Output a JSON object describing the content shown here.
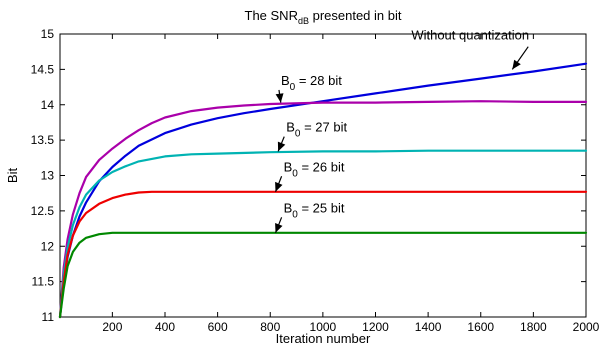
{
  "chart_data": {
    "type": "line",
    "title_main": "The SNR",
    "title_sub": "dB",
    "title_rest": " presented in bit",
    "xlabel": "Iteration number",
    "ylabel": "Bit",
    "xlim": [
      1,
      2000
    ],
    "ylim": [
      11,
      15
    ],
    "grid": false,
    "x_ticks": [
      200,
      400,
      600,
      800,
      1000,
      1200,
      1400,
      1600,
      1800,
      2000
    ],
    "y_ticks": [
      11,
      11.5,
      12,
      12.5,
      13,
      13.5,
      14,
      14.5,
      15
    ],
    "x_tick_labels": [
      "200",
      "400",
      "600",
      "800",
      "1000",
      "1200",
      "1400",
      "1600",
      "1800",
      "2000"
    ],
    "y_tick_labels": [
      "11",
      "11.5",
      "12",
      "12.5",
      "13",
      "13.5",
      "14",
      "14.5",
      "15"
    ],
    "series": [
      {
        "name": "Without quantization",
        "color": "#0000dd",
        "x": [
          1,
          15,
          30,
          50,
          75,
          100,
          150,
          200,
          250,
          300,
          400,
          500,
          600,
          700,
          800,
          1000,
          1200,
          1400,
          1600,
          1800,
          2000
        ],
        "y": [
          11.0,
          11.5,
          11.85,
          12.15,
          12.42,
          12.62,
          12.92,
          13.12,
          13.28,
          13.42,
          13.6,
          13.72,
          13.81,
          13.88,
          13.94,
          14.05,
          14.16,
          14.27,
          14.37,
          14.47,
          14.58
        ]
      },
      {
        "name": "B_0 = 28 bit",
        "color": "#aa00aa",
        "x": [
          1,
          15,
          30,
          50,
          75,
          100,
          150,
          200,
          250,
          300,
          350,
          400,
          500,
          600,
          700,
          800,
          1000,
          1200,
          1400,
          1600,
          1800,
          2000
        ],
        "y": [
          11.0,
          11.7,
          12.1,
          12.45,
          12.75,
          12.98,
          13.22,
          13.38,
          13.52,
          13.64,
          13.74,
          13.82,
          13.91,
          13.96,
          13.99,
          14.01,
          14.03,
          14.03,
          14.04,
          14.05,
          14.04,
          14.04
        ]
      },
      {
        "name": "B_0 = 27 bit",
        "color": "#00b3b3",
        "x": [
          1,
          15,
          30,
          50,
          75,
          100,
          150,
          200,
          250,
          300,
          400,
          500,
          600,
          800,
          1000,
          1200,
          1400,
          1600,
          1800,
          2000
        ],
        "y": [
          11.0,
          11.6,
          11.98,
          12.3,
          12.55,
          12.73,
          12.93,
          13.05,
          13.13,
          13.2,
          13.27,
          13.3,
          13.31,
          13.33,
          13.34,
          13.34,
          13.35,
          13.35,
          13.35,
          13.35
        ]
      },
      {
        "name": "B_0 = 26 bit",
        "color": "#ee0000",
        "x": [
          1,
          15,
          30,
          50,
          75,
          100,
          150,
          200,
          250,
          300,
          350,
          400,
          600,
          800,
          1000,
          1200,
          1400,
          1600,
          1800,
          2000
        ],
        "y": [
          11.0,
          11.5,
          11.88,
          12.15,
          12.35,
          12.47,
          12.6,
          12.68,
          12.73,
          12.76,
          12.77,
          12.77,
          12.77,
          12.77,
          12.77,
          12.77,
          12.77,
          12.77,
          12.77,
          12.77
        ]
      },
      {
        "name": "B_0 = 25 bit",
        "color": "#008800",
        "x": [
          1,
          15,
          30,
          50,
          75,
          100,
          150,
          200,
          300,
          400,
          600,
          800,
          1000,
          1200,
          1400,
          1600,
          1800,
          2000
        ],
        "y": [
          11.0,
          11.4,
          11.72,
          11.92,
          12.05,
          12.12,
          12.17,
          12.19,
          12.19,
          12.19,
          12.19,
          12.19,
          12.19,
          12.19,
          12.19,
          12.19,
          12.19,
          12.19
        ]
      }
    ],
    "annotations": [
      {
        "kind": "plain",
        "text": "Without quantization",
        "from": [
          1560,
          14.92
        ],
        "to": [
          1720,
          14.5
        ]
      },
      {
        "kind": "b0",
        "base": "B",
        "sub": "0",
        "rest": " = 28 bit",
        "from": [
          780,
          14.28
        ],
        "to": [
          840,
          14.03
        ]
      },
      {
        "kind": "b0",
        "base": "B",
        "sub": "0",
        "rest": " = 27 bit",
        "from": [
          800,
          13.62
        ],
        "to": [
          830,
          13.34
        ]
      },
      {
        "kind": "b0",
        "base": "B",
        "sub": "0",
        "rest": " = 26 bit",
        "from": [
          790,
          13.06
        ],
        "to": [
          820,
          12.77
        ]
      },
      {
        "kind": "b0",
        "base": "B",
        "sub": "0",
        "rest": " = 25 bit",
        "from": [
          790,
          12.48
        ],
        "to": [
          820,
          12.19
        ]
      }
    ]
  }
}
